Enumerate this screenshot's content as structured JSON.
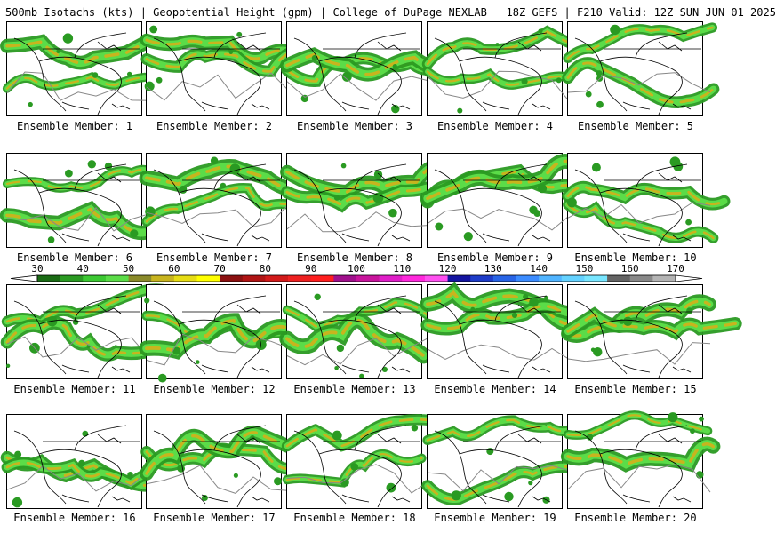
{
  "header": {
    "text": "500mb Isotachs (kts) | Geopotential Height (gpm) | College of DuPage NEXLAB   18Z GEFS | F210 Valid: 12Z SUN JUN 01 2025"
  },
  "colorbar": {
    "tick_labels": [
      "30",
      "40",
      "50",
      "60",
      "70",
      "80",
      "90",
      "100",
      "110",
      "120",
      "130",
      "140",
      "150",
      "160",
      "170"
    ],
    "colors": [
      "#1a6b14",
      "#2a9a22",
      "#3cc832",
      "#5bdc48",
      "#8a8a2a",
      "#c8b41e",
      "#e6dc14",
      "#ffff00",
      "#8b1010",
      "#b01414",
      "#d21a1a",
      "#ee2020",
      "#ff1e1e",
      "#a0108c",
      "#c8149c",
      "#e01ec8",
      "#ff28dc",
      "#ff50f0",
      "#1414a0",
      "#1e3cc8",
      "#2864e6",
      "#3c8cff",
      "#50b4ff",
      "#64d2ff",
      "#78e6ff",
      "#646464",
      "#888888",
      "#b4b4b4"
    ]
  },
  "panels": [
    {
      "caption": "Ensemble Member: 1"
    },
    {
      "caption": "Ensemble Member: 2"
    },
    {
      "caption": "Ensemble Member: 3"
    },
    {
      "caption": "Ensemble Member: 4"
    },
    {
      "caption": "Ensemble Member: 5"
    },
    {
      "caption": "Ensemble Member: 6"
    },
    {
      "caption": "Ensemble Member: 7"
    },
    {
      "caption": "Ensemble Member: 8"
    },
    {
      "caption": "Ensemble Member: 9"
    },
    {
      "caption": "Ensemble Member: 10"
    },
    {
      "caption": "Ensemble Member: 11"
    },
    {
      "caption": "Ensemble Member: 12"
    },
    {
      "caption": "Ensemble Member: 13"
    },
    {
      "caption": "Ensemble Member: 14"
    },
    {
      "caption": "Ensemble Member: 15"
    },
    {
      "caption": "Ensemble Member: 16"
    },
    {
      "caption": "Ensemble Member: 17"
    },
    {
      "caption": "Ensemble Member: 18"
    },
    {
      "caption": "Ensemble Member: 19"
    },
    {
      "caption": "Ensemble Member: 20"
    }
  ]
}
